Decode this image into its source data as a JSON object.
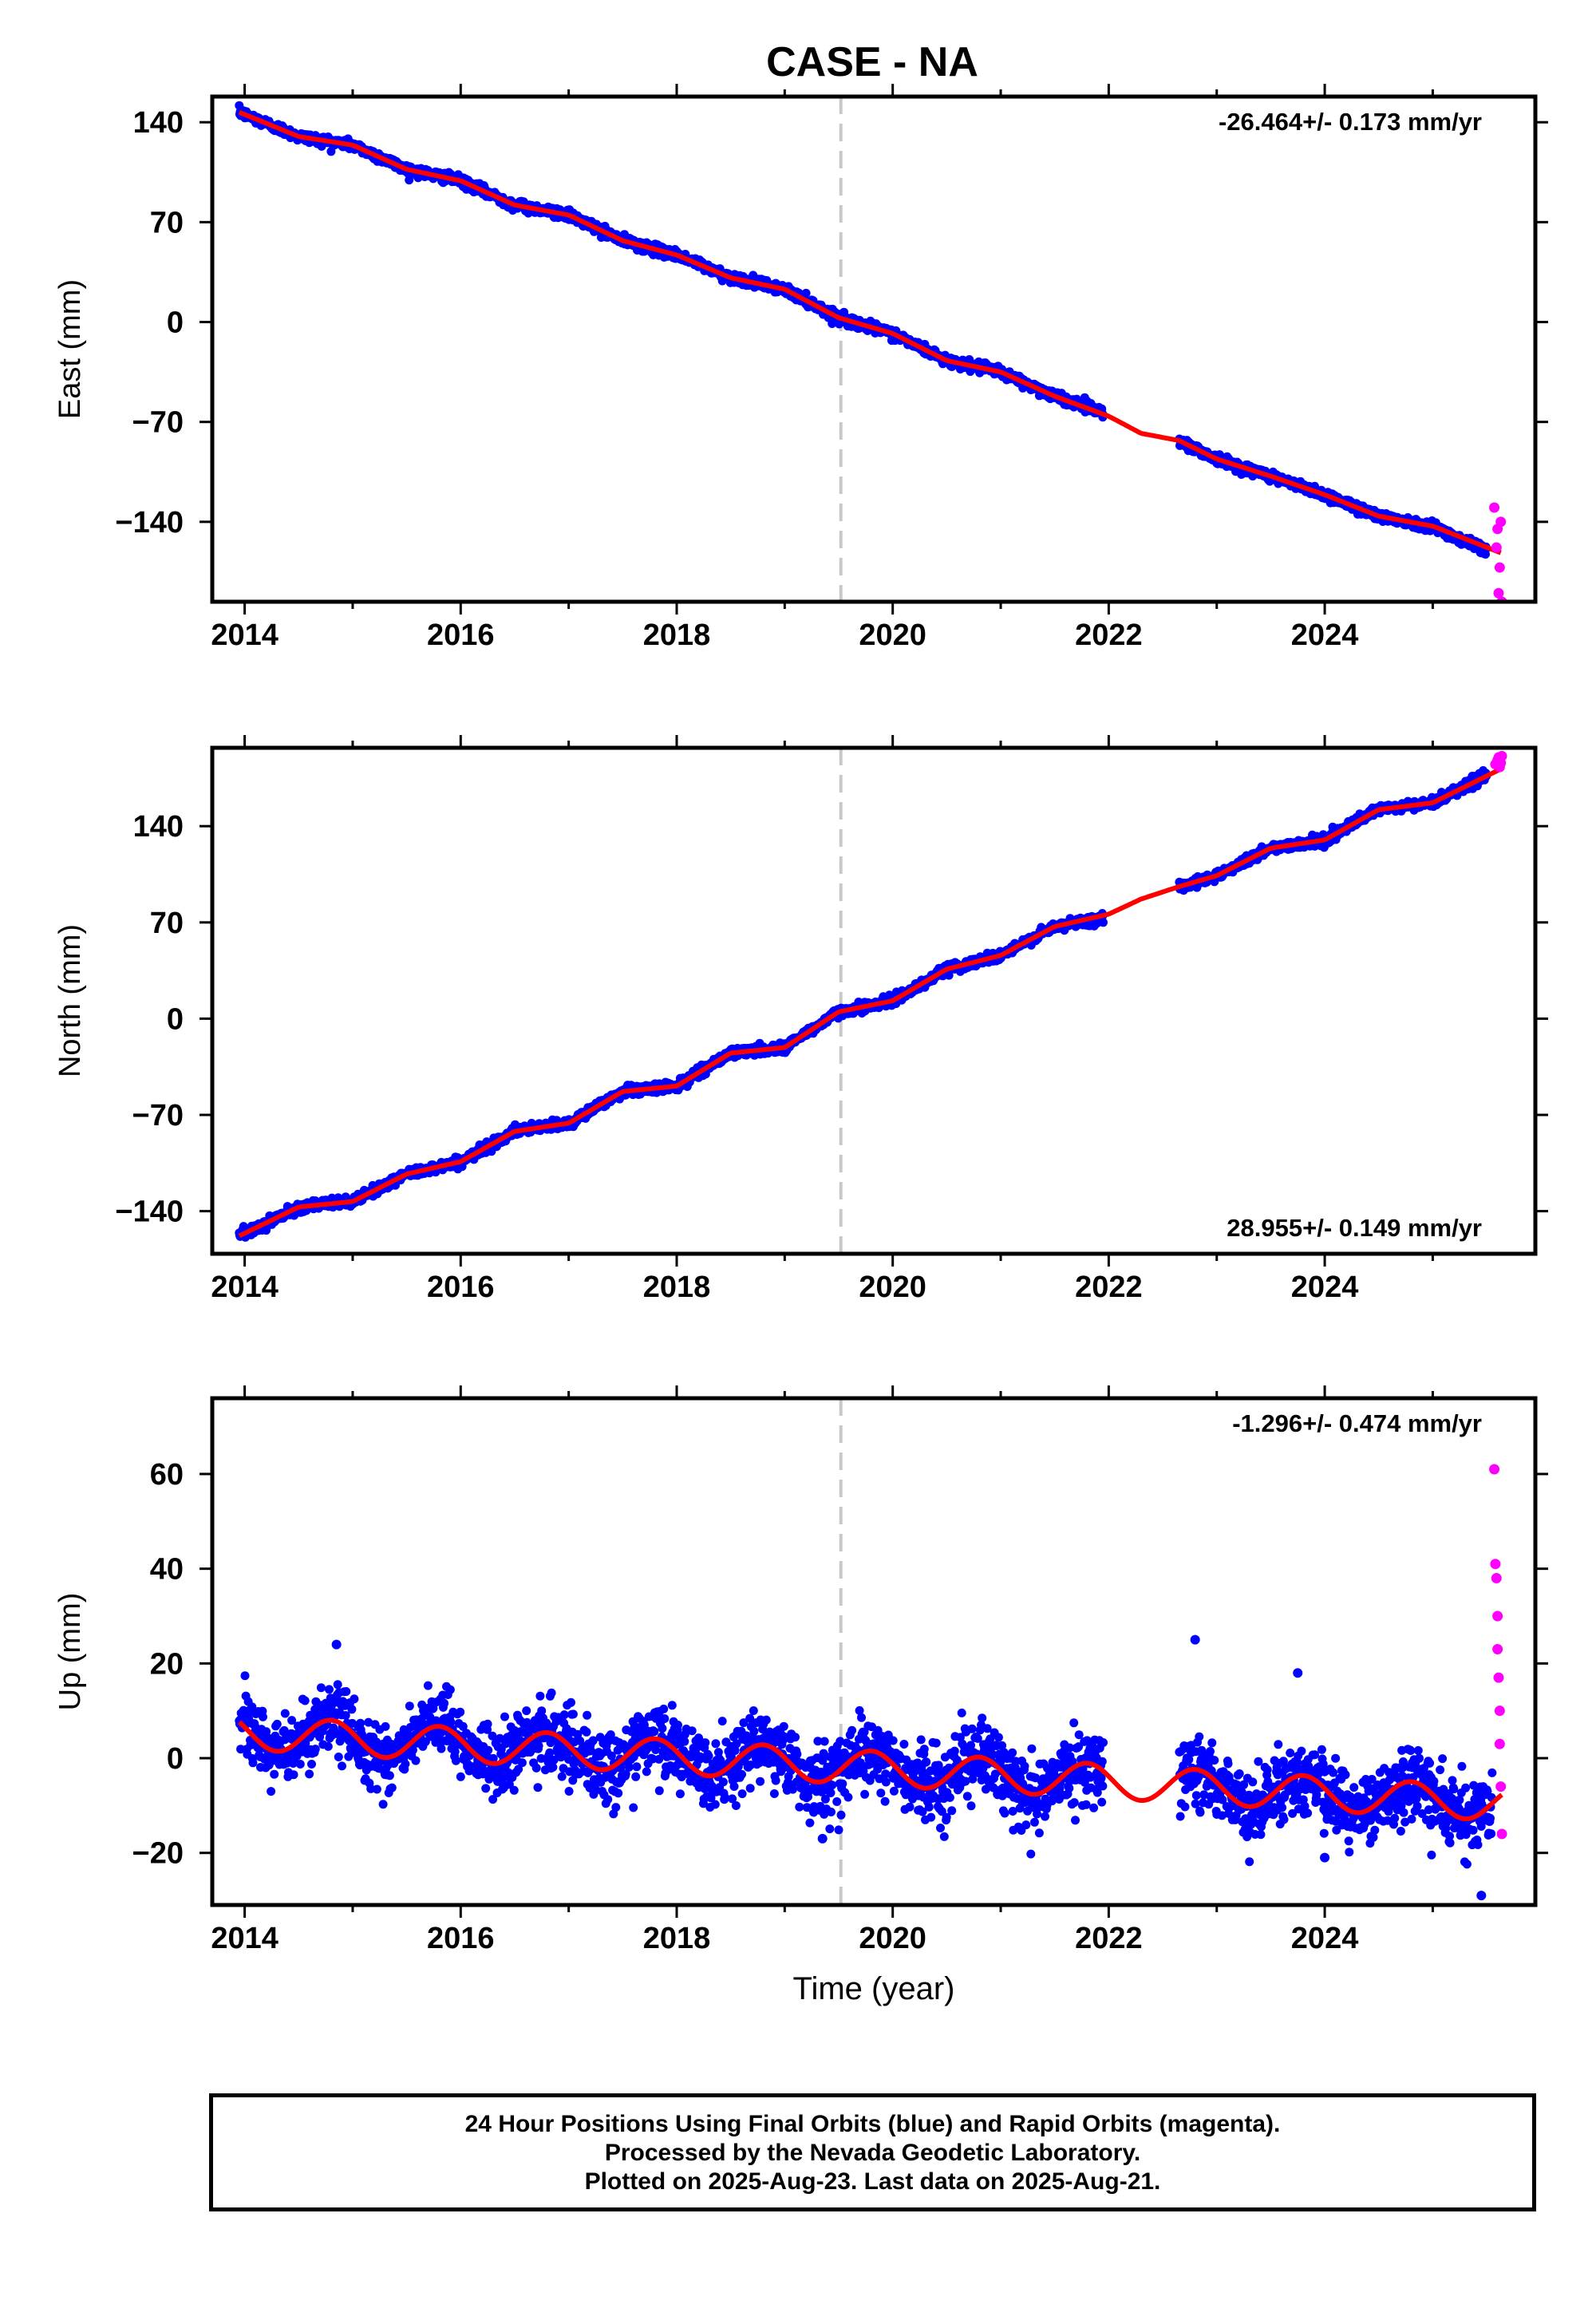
{
  "title": "CASE - NA",
  "colors": {
    "final_orbits": "#0000ff",
    "rapid_orbits": "#ff00ff",
    "model_fit": "#ff0000",
    "reference_line": "#c8c8c8",
    "frame": "#000000"
  },
  "footer": {
    "line1": "24 Hour Positions Using Final Orbits (blue) and Rapid Orbits (magenta).",
    "line2": "Processed by the Nevada Geodetic Laboratory.",
    "line3": "Plotted on 2025-Aug-23. Last data on 2025-Aug-21."
  },
  "chart_data": [
    {
      "type": "scatter",
      "name": "east",
      "ylabel": "East (mm)",
      "xlabel": "",
      "xlim": [
        2013.7,
        2025.95
      ],
      "ylim": [
        -196,
        158
      ],
      "xticks": [
        2014,
        2016,
        2018,
        2020,
        2022,
        2024
      ],
      "yticks": [
        -140,
        -70,
        0,
        70,
        140
      ],
      "reference_line_x": 2019.52,
      "grid": false,
      "rate_label": "-26.464+/- 0.173 mm/yr",
      "rate_position": "top-right",
      "gaps": [
        [
          2021.95,
          2022.65
        ]
      ],
      "final_orbits": {
        "x": [
          2013.95,
          2014.5,
          2015.0,
          2015.5,
          2016.0,
          2016.5,
          2017.0,
          2017.5,
          2018.0,
          2018.5,
          2019.0,
          2019.5,
          2020.0,
          2020.5,
          2021.0,
          2021.5,
          2021.95,
          2022.65,
          2023.0,
          2023.5,
          2024.0,
          2024.5,
          2025.0,
          2025.5
        ],
        "y": [
          147,
          130,
          124,
          107,
          99,
          82,
          75,
          57,
          47,
          31,
          23,
          3,
          -8,
          -27,
          -35,
          -52,
          -63,
          -83,
          -96,
          -108,
          -121,
          -136,
          -143,
          -160
        ]
      },
      "rapid_orbits": {
        "x": [
          2025.57,
          2025.59,
          2025.6,
          2025.61,
          2025.62,
          2025.63,
          2025.64
        ],
        "y": [
          -130,
          -158,
          -145,
          -190,
          -172,
          -140,
          -196
        ]
      },
      "model_fit": {
        "x": [
          2013.95,
          2014.5,
          2015.0,
          2015.5,
          2016.0,
          2016.5,
          2017.0,
          2017.5,
          2018.0,
          2018.5,
          2019.0,
          2019.5,
          2020.0,
          2020.5,
          2021.0,
          2021.5,
          2022.0,
          2022.3,
          2022.65,
          2023.0,
          2023.5,
          2024.0,
          2024.5,
          2025.0,
          2025.64
        ],
        "y": [
          147,
          130,
          124,
          107,
          99,
          82,
          75,
          57,
          47,
          31,
          23,
          3,
          -8,
          -27,
          -35,
          -52,
          -66,
          -78,
          -83,
          -96,
          -108,
          -121,
          -136,
          -143,
          -162
        ]
      }
    },
    {
      "type": "scatter",
      "name": "north",
      "ylabel": "North (mm)",
      "xlabel": "",
      "xlim": [
        2013.7,
        2025.95
      ],
      "ylim": [
        -171,
        197
      ],
      "xticks": [
        2014,
        2016,
        2018,
        2020,
        2022,
        2024
      ],
      "yticks": [
        -140,
        -70,
        0,
        70,
        140
      ],
      "reference_line_x": 2019.52,
      "grid": false,
      "rate_label": "28.955+/- 0.149 mm/yr",
      "rate_position": "bottom-right",
      "gaps": [
        [
          2021.95,
          2022.65
        ]
      ],
      "final_orbits": {
        "x": [
          2013.95,
          2014.5,
          2015.0,
          2015.5,
          2016.0,
          2016.5,
          2017.0,
          2017.5,
          2018.0,
          2018.5,
          2019.0,
          2019.5,
          2020.0,
          2020.5,
          2021.0,
          2021.5,
          2021.95,
          2022.65,
          2023.0,
          2023.5,
          2024.0,
          2024.5,
          2025.0,
          2025.5
        ],
        "y": [
          -158,
          -137,
          -133,
          -113,
          -104,
          -82,
          -76,
          -53,
          -49,
          -25,
          -21,
          5,
          13,
          36,
          46,
          67,
          73,
          96,
          104,
          124,
          130,
          152,
          157,
          178
        ]
      },
      "rapid_orbits": {
        "x": [
          2025.58,
          2025.6,
          2025.61,
          2025.62,
          2025.63,
          2025.64
        ],
        "y": [
          185,
          188,
          190,
          183,
          186,
          191
        ]
      },
      "model_fit": {
        "x": [
          2013.95,
          2014.5,
          2015.0,
          2015.5,
          2016.0,
          2016.5,
          2017.0,
          2017.5,
          2018.0,
          2018.5,
          2019.0,
          2019.5,
          2020.0,
          2020.5,
          2021.0,
          2021.5,
          2022.0,
          2022.3,
          2022.65,
          2023.0,
          2023.5,
          2024.0,
          2024.5,
          2025.0,
          2025.64
        ],
        "y": [
          -158,
          -137,
          -133,
          -113,
          -104,
          -82,
          -76,
          -53,
          -49,
          -25,
          -21,
          5,
          13,
          36,
          46,
          67,
          76,
          87,
          96,
          104,
          124,
          130,
          152,
          157,
          182
        ]
      }
    },
    {
      "type": "scatter",
      "name": "up",
      "ylabel": "Up (mm)",
      "xlabel": "Time (year)",
      "xlim": [
        2013.7,
        2025.95
      ],
      "ylim": [
        -31,
        76
      ],
      "xticks": [
        2014,
        2016,
        2018,
        2020,
        2022,
        2024
      ],
      "yticks": [
        -20,
        0,
        20,
        40,
        60
      ],
      "reference_line_x": 2019.52,
      "grid": false,
      "rate_label": "-1.296+/- 0.474 mm/yr",
      "rate_position": "top-right",
      "gaps": [
        [
          2021.95,
          2022.65
        ]
      ],
      "model": {
        "offset": 5.5,
        "rate": -1.296,
        "annual_amplitude": 3.6,
        "annual_peak": 0.8,
        "reference_epoch": 2013.95
      },
      "final_orbits_spread": 3.6,
      "final_orbits_outliers": {
        "x": [
          2014.85,
          2019.35,
          2022.8,
          2023.75,
          2024.0,
          2025.45
        ],
        "y": [
          24,
          -17,
          25,
          18,
          -21,
          -29
        ]
      },
      "rapid_orbits": {
        "x": [
          2025.57,
          2025.58,
          2025.59,
          2025.6,
          2025.6,
          2025.61,
          2025.62,
          2025.62,
          2025.63,
          2025.64
        ],
        "y": [
          61,
          41,
          38,
          30,
          23,
          17,
          10,
          3,
          -6,
          -16
        ]
      }
    }
  ]
}
